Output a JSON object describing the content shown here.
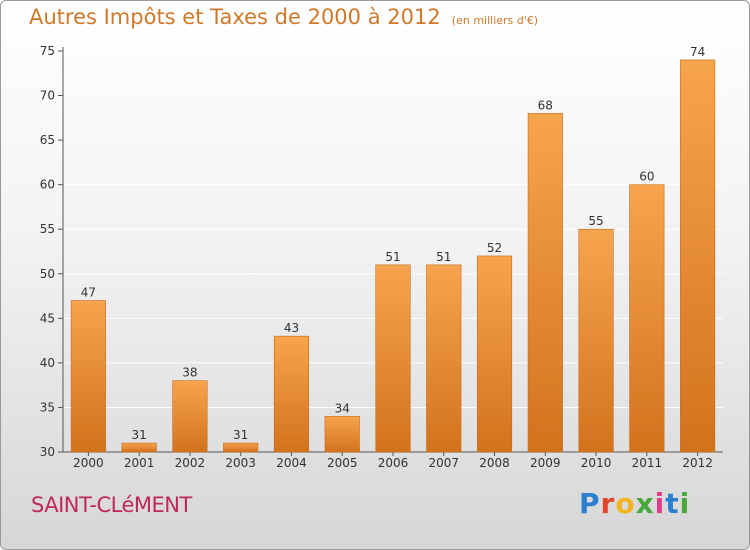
{
  "title": "Autres Impôts et Taxes de 2000 à 2012",
  "subtitle": "(en milliers d'€)",
  "commune": "SAINT-CLéMENT",
  "logo": {
    "text": "Proxiti"
  },
  "colors": {
    "bar_light": "#f7a44e",
    "bar_dark": "#d2731c",
    "title": "#d0792a",
    "commune": "#c0285a",
    "logo": [
      "#2a7fd1",
      "#e0472a",
      "#f0b520",
      "#49a83b",
      "#e03c8a",
      "#2a7fd1",
      "#49a83b"
    ]
  },
  "chart_data": {
    "type": "bar",
    "categories": [
      "2000",
      "2001",
      "2002",
      "2003",
      "2004",
      "2005",
      "2006",
      "2007",
      "2008",
      "2009",
      "2010",
      "2011",
      "2012"
    ],
    "values": [
      47,
      31,
      38,
      31,
      43,
      34,
      51,
      51,
      52,
      68,
      55,
      60,
      74
    ],
    "ylim": [
      30,
      75
    ],
    "yticks": [
      30,
      35,
      40,
      45,
      50,
      55,
      60,
      65,
      70,
      75
    ],
    "grid": true,
    "data_labels": true
  }
}
